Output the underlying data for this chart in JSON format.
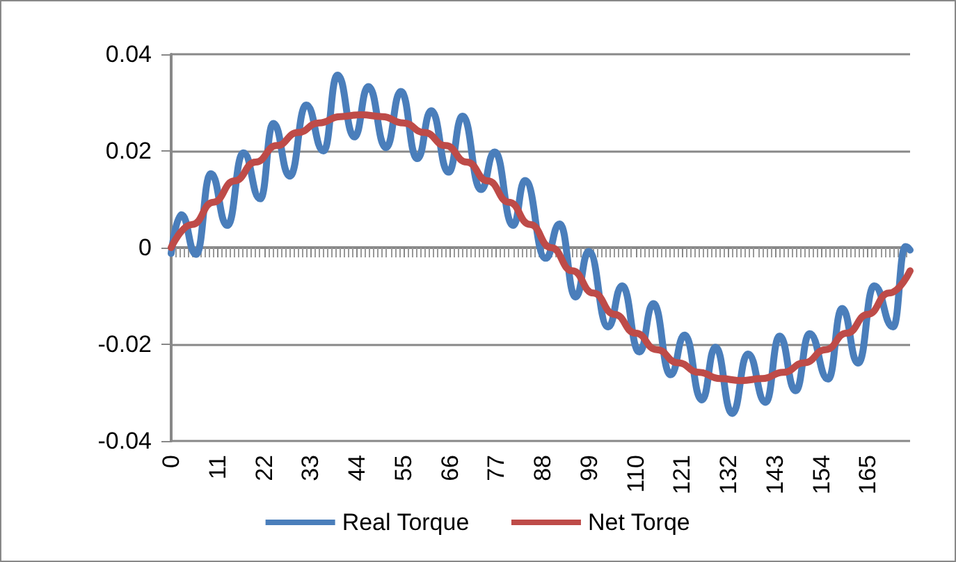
{
  "chart_data": {
    "type": "line",
    "xlim": [
      0,
      175
    ],
    "xticks": [
      0,
      11,
      22,
      33,
      44,
      55,
      66,
      77,
      88,
      99,
      110,
      121,
      132,
      143,
      154,
      165
    ],
    "ylim": [
      -0.04,
      0.04
    ],
    "yticks": [
      -0.04,
      -0.02,
      0,
      0.02,
      0.04
    ],
    "grid": "y",
    "legend": "bottom",
    "marker": "none",
    "line_style": "solid",
    "series": [
      {
        "name": "Real Torque",
        "color": "#4a7ebb",
        "x": [
          0,
          2.4,
          5.9,
          9.4,
          13.3,
          17.1,
          21.1,
          24.2,
          28.1,
          32,
          36.1,
          39.4,
          43.4,
          46.7,
          50.9,
          54.4,
          58.3,
          61.6,
          65.7,
          69,
          73.4,
          76.6,
          81,
          83.8,
          88.7,
          92,
          95.8,
          98.9,
          103.5,
          106.8,
          110.9,
          114.2,
          118.3,
          121.6,
          125.7,
          128.9,
          132.9,
          136.6,
          140.8,
          144.1,
          147.9,
          151.2,
          155.6,
          158.9,
          162.7,
          166.5,
          171,
          173.9,
          175
        ],
        "values": [
          -0.0012,
          0.0068,
          -0.0014,
          0.0153,
          0.0046,
          0.0196,
          0.0101,
          0.0257,
          0.0148,
          0.0295,
          0.02,
          0.0357,
          0.0229,
          0.0333,
          0.0207,
          0.0323,
          0.0184,
          0.0283,
          0.0156,
          0.0272,
          0.012,
          0.0198,
          0.0046,
          0.0139,
          -0.0022,
          0.0049,
          -0.0102,
          -0.0008,
          -0.0164,
          -0.0079,
          -0.0216,
          -0.0116,
          -0.0263,
          -0.0181,
          -0.0315,
          -0.0206,
          -0.0343,
          -0.022,
          -0.032,
          -0.0183,
          -0.0296,
          -0.0178,
          -0.0272,
          -0.0126,
          -0.0239,
          -0.0079,
          -0.0164,
          0.0002,
          -0.0005
        ]
      },
      {
        "name": "Net Torqe",
        "color": "#be4b48",
        "x": [
          0,
          5,
          10,
          15,
          20,
          25,
          30,
          35,
          40,
          45,
          50,
          55,
          60,
          65,
          70,
          75,
          80,
          85,
          90,
          95,
          100,
          105,
          110,
          115,
          120,
          125,
          130,
          135,
          140,
          145,
          150,
          155,
          160,
          165,
          170,
          175
        ],
        "values": [
          0,
          0.0048,
          0.0094,
          0.0138,
          0.0177,
          0.0211,
          0.0238,
          0.0258,
          0.0271,
          0.0275,
          0.0271,
          0.0258,
          0.0238,
          0.0211,
          0.0177,
          0.0138,
          0.0094,
          0.0048,
          0,
          -0.0048,
          -0.0094,
          -0.0138,
          -0.0177,
          -0.0211,
          -0.0238,
          -0.0258,
          -0.0271,
          -0.0275,
          -0.0271,
          -0.0258,
          -0.0238,
          -0.0211,
          -0.0177,
          -0.0138,
          -0.0094,
          -0.0048
        ]
      }
    ]
  }
}
